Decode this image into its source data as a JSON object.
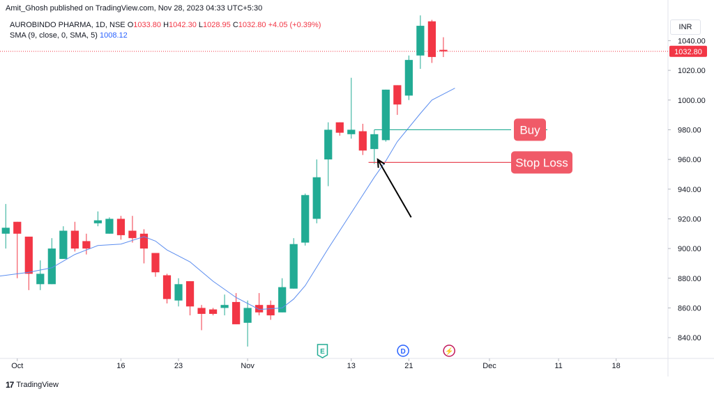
{
  "publisher": "Amit_Ghosh published on TradingView.com, Nov 28, 2023 04:33 UTC+5:30",
  "legend": {
    "symbol": "AUROBINDO PHARMA, 1D, NSE",
    "open_label": "O",
    "open": "1033.80",
    "high_label": "H",
    "high": "1042.30",
    "low_label": "L",
    "low": "1028.95",
    "close_label": "C",
    "close": "1032.80",
    "change": "+4.05 (+0.39%)",
    "sma_label": "SMA (9, close, 0, SMA, 5)",
    "sma_value": "1008.12"
  },
  "currency": "INR",
  "footer": {
    "brand": "TradingView"
  },
  "colors": {
    "up": "#22ab94",
    "down": "#f23645",
    "sma": "#5b8def",
    "buy": "#22ab94",
    "stop": "#e84a57",
    "label_bg": "#f05a68"
  },
  "chart_data": {
    "type": "candlestick",
    "y_range": [
      826,
      1058
    ],
    "y_ticks": [
      840,
      860,
      880,
      900,
      920,
      940,
      960,
      980,
      1000,
      1020,
      1040
    ],
    "x_tick_labels": [
      {
        "label": "Oct",
        "index": 1
      },
      {
        "label": "16",
        "index": 10
      },
      {
        "label": "23",
        "index": 15
      },
      {
        "label": "Nov",
        "index": 21
      },
      {
        "label": "13",
        "index": 30
      },
      {
        "label": "21",
        "index": 35
      },
      {
        "label": "Dec",
        "index": 42
      },
      {
        "label": "11",
        "index": 48
      },
      {
        "label": "18",
        "index": 53
      }
    ],
    "x_range": [
      -0.5,
      57.5
    ],
    "last_price": "1032.80",
    "candles": [
      {
        "o": 910,
        "h": 930,
        "l": 900,
        "c": 914
      },
      {
        "o": 918,
        "h": 918,
        "l": 880,
        "c": 910
      },
      {
        "o": 908,
        "h": 908,
        "l": 872,
        "c": 883
      },
      {
        "o": 876,
        "h": 892,
        "l": 872,
        "c": 883
      },
      {
        "o": 876,
        "h": 907,
        "l": 876,
        "c": 900
      },
      {
        "o": 893,
        "h": 915,
        "l": 893,
        "c": 912
      },
      {
        "o": 912,
        "h": 918,
        "l": 898,
        "c": 900
      },
      {
        "o": 905,
        "h": 910,
        "l": 896,
        "c": 900
      },
      {
        "o": 917,
        "h": 925,
        "l": 915,
        "c": 919
      },
      {
        "o": 910,
        "h": 921,
        "l": 910,
        "c": 920
      },
      {
        "o": 920,
        "h": 922,
        "l": 906,
        "c": 909
      },
      {
        "o": 912,
        "h": 922,
        "l": 904,
        "c": 907
      },
      {
        "o": 910,
        "h": 913,
        "l": 890,
        "c": 900
      },
      {
        "o": 897,
        "h": 897,
        "l": 881,
        "c": 884
      },
      {
        "o": 882,
        "h": 883,
        "l": 863,
        "c": 866
      },
      {
        "o": 865,
        "h": 880,
        "l": 861,
        "c": 876
      },
      {
        "o": 878,
        "h": 878,
        "l": 855,
        "c": 861
      },
      {
        "o": 860,
        "h": 862,
        "l": 845,
        "c": 856
      },
      {
        "o": 859,
        "h": 860,
        "l": 855,
        "c": 856
      },
      {
        "o": 860,
        "h": 869,
        "l": 855,
        "c": 862
      },
      {
        "o": 864,
        "h": 870,
        "l": 849,
        "c": 849
      },
      {
        "o": 850,
        "h": 865,
        "l": 834,
        "c": 860
      },
      {
        "o": 862,
        "h": 870,
        "l": 855,
        "c": 857
      },
      {
        "o": 862,
        "h": 865,
        "l": 852,
        "c": 855
      },
      {
        "o": 857,
        "h": 880,
        "l": 857,
        "c": 874
      },
      {
        "o": 873,
        "h": 907,
        "l": 873,
        "c": 903
      },
      {
        "o": 904,
        "h": 937,
        "l": 902,
        "c": 936
      },
      {
        "o": 920,
        "h": 960,
        "l": 917,
        "c": 948
      },
      {
        "o": 960,
        "h": 985,
        "l": 942,
        "c": 980
      },
      {
        "o": 985,
        "h": 985,
        "l": 976,
        "c": 978
      },
      {
        "o": 977,
        "h": 1015,
        "l": 974,
        "c": 980
      },
      {
        "o": 979,
        "h": 984,
        "l": 963,
        "c": 966
      },
      {
        "o": 967,
        "h": 980,
        "l": 957,
        "c": 977
      },
      {
        "o": 973,
        "h": 1007,
        "l": 972,
        "c": 1007
      },
      {
        "o": 1010,
        "h": 1010,
        "l": 990,
        "c": 997
      },
      {
        "o": 1003,
        "h": 1030,
        "l": 1000,
        "c": 1027
      },
      {
        "o": 1030,
        "h": 1057,
        "l": 1021,
        "c": 1050
      },
      {
        "o": 1053,
        "h": 1054,
        "l": 1025,
        "c": 1029
      },
      {
        "o": 1033.8,
        "h": 1042.3,
        "l": 1028.95,
        "c": 1032.8
      }
    ],
    "sma": [
      {
        "i": -1,
        "v": 881
      },
      {
        "i": 2,
        "v": 884
      },
      {
        "i": 4,
        "v": 887
      },
      {
        "i": 6,
        "v": 896
      },
      {
        "i": 8,
        "v": 902
      },
      {
        "i": 10,
        "v": 903
      },
      {
        "i": 12,
        "v": 908
      },
      {
        "i": 13,
        "v": 905
      },
      {
        "i": 14,
        "v": 899
      },
      {
        "i": 16,
        "v": 891
      },
      {
        "i": 18,
        "v": 878
      },
      {
        "i": 20,
        "v": 867
      },
      {
        "i": 22,
        "v": 859
      },
      {
        "i": 24,
        "v": 860
      },
      {
        "i": 25,
        "v": 866
      },
      {
        "i": 26,
        "v": 875
      },
      {
        "i": 28,
        "v": 900
      },
      {
        "i": 30,
        "v": 924
      },
      {
        "i": 32,
        "v": 948
      },
      {
        "i": 33,
        "v": 959
      },
      {
        "i": 34,
        "v": 972
      },
      {
        "i": 36,
        "v": 991
      },
      {
        "i": 37,
        "v": 1000
      },
      {
        "i": 39,
        "v": 1008
      }
    ],
    "annotations": {
      "buy": {
        "text": "Buy",
        "price": 980,
        "from_index": 32
      },
      "stop": {
        "text": "Stop Loss",
        "price": 958,
        "from_index": 31.5
      },
      "arrow": {
        "from_index": 35.2,
        "from_price": 921,
        "to_index": 32.3,
        "to_price": 960
      }
    },
    "event_markers": [
      {
        "index": 27.5,
        "symbol": "E"
      },
      {
        "index": 34.5,
        "symbol": "D"
      },
      {
        "index": 38.5,
        "symbol": "⚡"
      }
    ]
  }
}
